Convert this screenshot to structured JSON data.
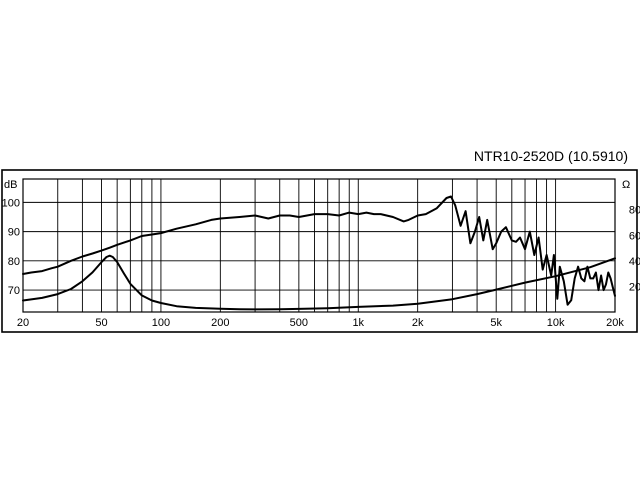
{
  "chart_data": {
    "type": "line",
    "title": "NTR10-2520D (10.5910)",
    "x_scale": "log",
    "xlim": [
      20,
      20000
    ],
    "x_tick_values": [
      20,
      50,
      100,
      200,
      500,
      1000,
      2000,
      5000,
      10000,
      20000
    ],
    "x_tick_labels": [
      "20",
      "50",
      "100",
      "200",
      "500",
      "1k",
      "2k",
      "5k",
      "10k",
      "20k"
    ],
    "left_axis": {
      "unit": "dB",
      "ylim": [
        62.5,
        108
      ],
      "ticks": [
        70,
        80,
        90,
        100
      ]
    },
    "right_axis": {
      "unit": "Ω",
      "ylim": [
        0,
        104
      ],
      "ticks": [
        20,
        40,
        60,
        80
      ]
    },
    "grid": true,
    "series": [
      {
        "axis": "left",
        "x": [
          20,
          22,
          25,
          28,
          30,
          35,
          40,
          45,
          50,
          55,
          60,
          70,
          80,
          90,
          100,
          120,
          150,
          180,
          200,
          250,
          300,
          350,
          400,
          450,
          500,
          600,
          700,
          800,
          900,
          1000,
          1100,
          1200,
          1300,
          1500,
          1700,
          1800,
          2000,
          2200,
          2500,
          2800,
          2950,
          3100,
          3300,
          3500,
          3700,
          3900,
          4100,
          4300,
          4500,
          4800,
          5000,
          5300,
          5600,
          6000,
          6300,
          6600,
          7000,
          7400,
          7800,
          8200,
          8600,
          9000,
          9500,
          9800,
          10200,
          10500,
          11000,
          11500,
          12000,
          12500,
          13000,
          13500,
          14000,
          14500,
          15000,
          15500,
          16000,
          16500,
          17000,
          17500,
          18000,
          18500,
          19000,
          19500,
          20000
        ],
        "values": [
          75.5,
          76,
          76.5,
          77.5,
          78,
          80,
          81.5,
          82.5,
          83.5,
          84.5,
          85.5,
          87,
          88.5,
          89,
          89.5,
          91,
          92.5,
          94,
          94.5,
          95,
          95.5,
          94.5,
          95.5,
          95.5,
          95,
          96,
          96,
          95.5,
          96.5,
          96,
          96.5,
          96,
          96,
          95,
          93.5,
          94,
          95.5,
          96,
          98,
          101.5,
          102,
          99,
          92,
          97,
          86,
          90,
          95,
          87,
          94,
          84,
          86,
          90,
          91.5,
          87,
          86.5,
          88,
          84,
          90,
          82,
          88,
          77,
          82,
          75,
          82,
          67,
          78,
          73,
          65,
          66.5,
          74,
          78,
          74,
          73,
          78,
          74,
          74,
          76,
          70,
          75,
          70,
          72,
          76,
          74,
          71,
          68
        ]
      },
      {
        "axis": "right",
        "x": [
          20,
          25,
          30,
          35,
          40,
          45,
          50,
          53,
          55,
          57,
          60,
          65,
          70,
          80,
          90,
          100,
          120,
          150,
          200,
          250,
          300,
          400,
          500,
          700,
          1000,
          1500,
          2000,
          3000,
          4000,
          5000,
          7000,
          10000,
          15000,
          20000
        ],
        "values": [
          9,
          11,
          14,
          18,
          24,
          31,
          39,
          43,
          44,
          43,
          39,
          30,
          22,
          13,
          9,
          7,
          4.5,
          3.2,
          2.5,
          2.2,
          2,
          2.1,
          2.4,
          3,
          4,
          5,
          6.5,
          10,
          14,
          17.5,
          23,
          28,
          35,
          42
        ]
      }
    ]
  }
}
